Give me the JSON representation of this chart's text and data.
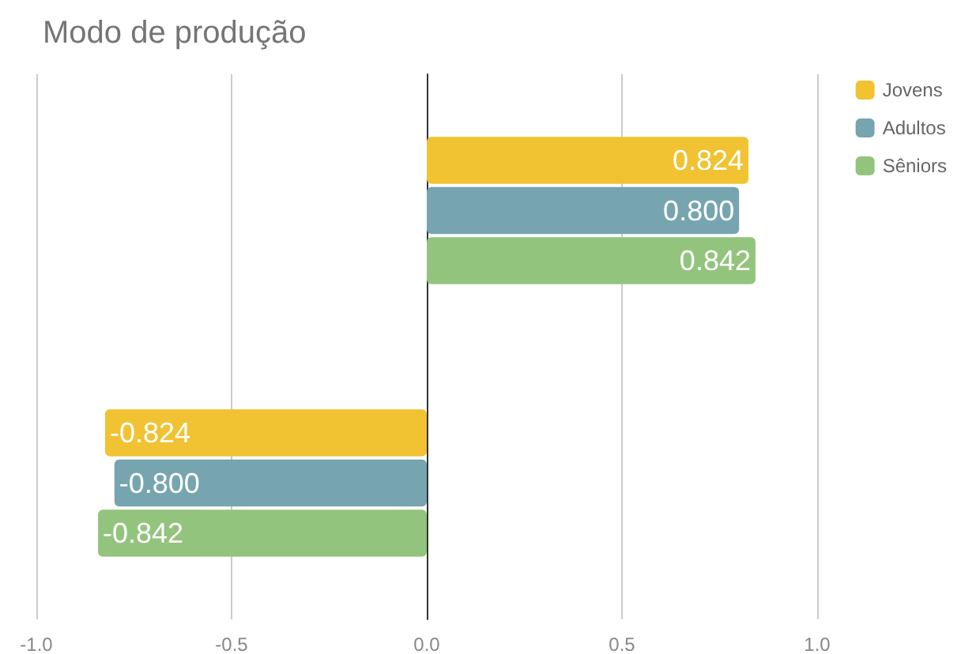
{
  "chart_data": {
    "type": "bar",
    "orientation": "horizontal",
    "title": "Modo de produção",
    "categories": [
      null,
      null
    ],
    "series": [
      {
        "name": "Jovens",
        "color": "#f1c232",
        "values": [
          0.824,
          -0.824
        ],
        "value_labels": [
          "0.824",
          "-0.824"
        ]
      },
      {
        "name": "Adultos",
        "color": "#76a5af",
        "values": [
          0.8,
          -0.8
        ],
        "value_labels": [
          "0.800",
          "-0.800"
        ]
      },
      {
        "name": "Sêniors",
        "color": "#93c47d",
        "values": [
          0.842,
          -0.842
        ],
        "value_labels": [
          "0.842",
          "-0.842"
        ]
      }
    ],
    "xlim": [
      -1,
      1
    ],
    "xticks": [
      {
        "value": -1,
        "label": "-1.0"
      },
      {
        "value": -0.5,
        "label": "-0.5"
      },
      {
        "value": 0,
        "label": "0.0"
      },
      {
        "value": 0.5,
        "label": "0.5"
      },
      {
        "value": 1,
        "label": "1.0"
      }
    ],
    "grid": "x",
    "legend": "top right"
  }
}
